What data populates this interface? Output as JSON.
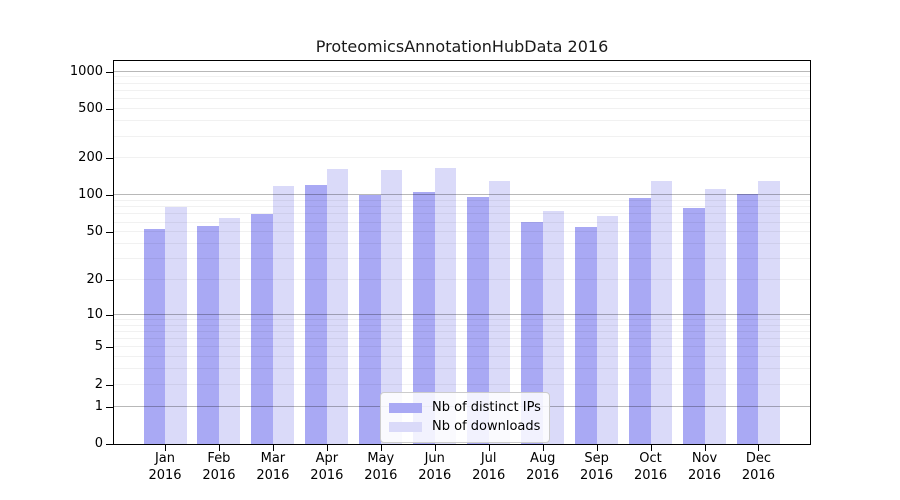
{
  "chart_data": {
    "type": "bar",
    "title": "ProteomicsAnnotationHubData 2016",
    "year": "2016",
    "categories": [
      "Jan",
      "Feb",
      "Mar",
      "Apr",
      "May",
      "Jun",
      "Jul",
      "Aug",
      "Sep",
      "Oct",
      "Nov",
      "Dec"
    ],
    "series": [
      {
        "name": "Nb of distinct IPs",
        "color": "#a9a9f4",
        "values": [
          53,
          56,
          71,
          122,
          100,
          106,
          97,
          61,
          55,
          96,
          79,
          103
        ]
      },
      {
        "name": "Nb of downloads",
        "color": "#dadaf9",
        "values": [
          81,
          65,
          120,
          165,
          162,
          168,
          130,
          75,
          68,
          130,
          113,
          132
        ]
      }
    ],
    "yticks": [
      0,
      1,
      2,
      5,
      10,
      20,
      50,
      100,
      200,
      500,
      1000
    ],
    "ylim": [
      0,
      1220
    ],
    "y_scale": "log10(value+1)",
    "grid": true,
    "legend_position": "bottom-center"
  }
}
